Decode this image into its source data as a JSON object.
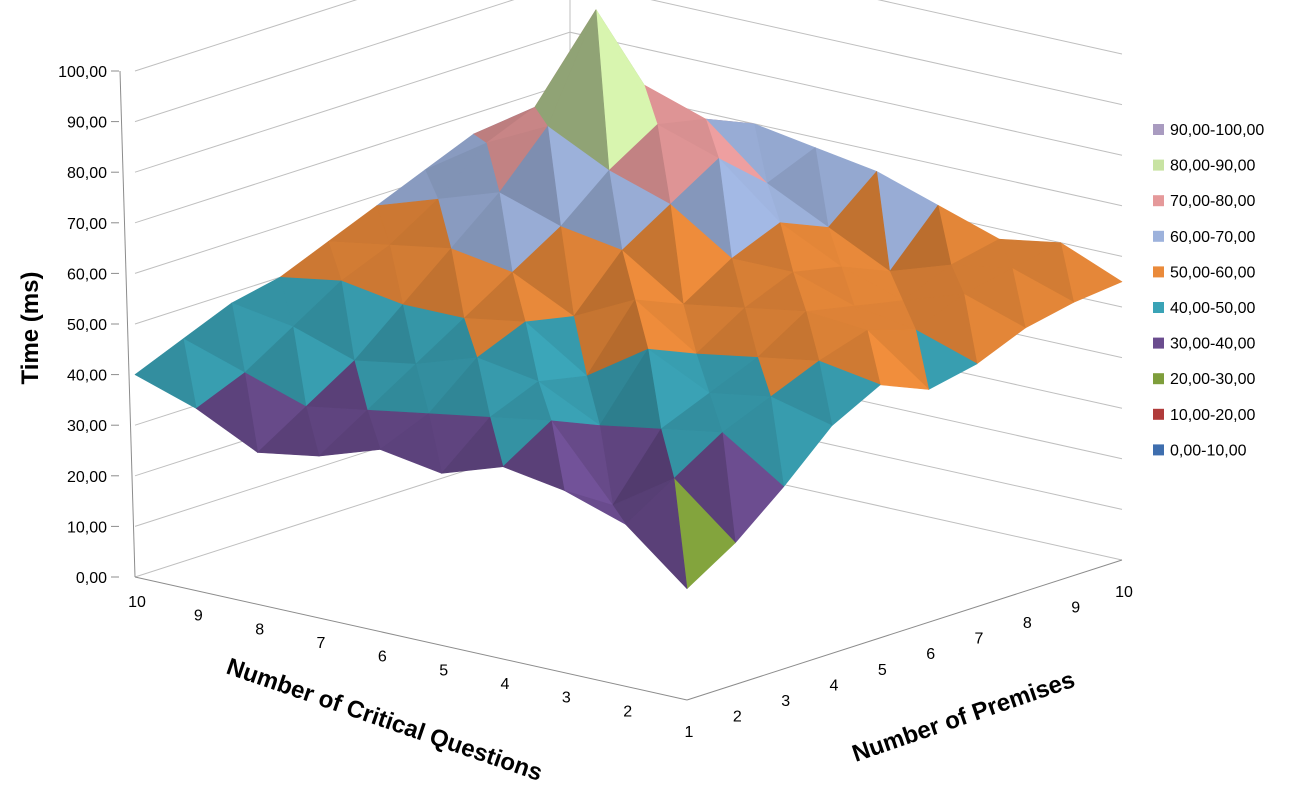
{
  "chart_data": {
    "type": "surface",
    "zlabel": "Time (ms)",
    "xlabel": "Number of Critical Questions",
    "ylabel": "Number of Premises",
    "zlim": [
      0,
      100
    ],
    "z_ticks": [
      "0,00",
      "10,00",
      "20,00",
      "30,00",
      "40,00",
      "50,00",
      "60,00",
      "70,00",
      "80,00",
      "90,00",
      "100,00"
    ],
    "x_ticks": [
      "10",
      "9",
      "8",
      "7",
      "6",
      "5",
      "4",
      "3",
      "2"
    ],
    "y_ticks": [
      "1",
      "2",
      "3",
      "4",
      "5",
      "6",
      "7",
      "8",
      "9",
      "10"
    ],
    "critical_questions": [
      1,
      2,
      3,
      4,
      5,
      6,
      7,
      8,
      9,
      10
    ],
    "premises": [
      1,
      2,
      3,
      4,
      5,
      6,
      7,
      8,
      9,
      10
    ],
    "z_values": [
      [
        22,
        28,
        36,
        45,
        50,
        46,
        48,
        52,
        54,
        55
      ],
      [
        32,
        38,
        44,
        48,
        52,
        55,
        52,
        56,
        58,
        60
      ],
      [
        36,
        30,
        42,
        46,
        50,
        56,
        54,
        52,
        56,
        58
      ],
      [
        38,
        44,
        40,
        52,
        48,
        54,
        58,
        56,
        52,
        62
      ],
      [
        34,
        42,
        46,
        44,
        56,
        52,
        58,
        62,
        58,
        66
      ],
      [
        36,
        40,
        48,
        52,
        50,
        60,
        66,
        72,
        64,
        68
      ],
      [
        32,
        38,
        44,
        50,
        56,
        62,
        70,
        76,
        74,
        70
      ],
      [
        30,
        36,
        42,
        50,
        58,
        66,
        76,
        96,
        78,
        66
      ],
      [
        36,
        40,
        46,
        52,
        56,
        62,
        70,
        74,
        68,
        62
      ],
      [
        40,
        44,
        48,
        50,
        54,
        58,
        62,
        66,
        64,
        60
      ]
    ],
    "legend_position": "right",
    "legend": [
      {
        "label": "90,00-100,00",
        "color": "#A99BC0"
      },
      {
        "label": "80,00-90,00",
        "color": "#C8E3A2"
      },
      {
        "label": "70,00-80,00",
        "color": "#E5999A"
      },
      {
        "label": "60,00-70,00",
        "color": "#9DB2DC"
      },
      {
        "label": "50,00-60,00",
        "color": "#EA8A3A"
      },
      {
        "label": "40,00-50,00",
        "color": "#3AA3B6"
      },
      {
        "label": "30,00-40,00",
        "color": "#6A4C8E"
      },
      {
        "label": "20,00-30,00",
        "color": "#7E9E3B"
      },
      {
        "label": "10,00-20,00",
        "color": "#B03B3A"
      },
      {
        "label": "0,00-10,00",
        "color": "#3E6EAE"
      }
    ]
  }
}
